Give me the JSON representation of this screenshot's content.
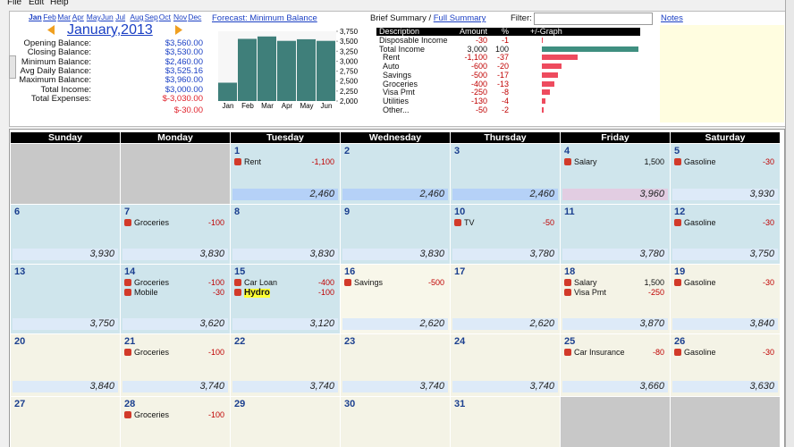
{
  "menu": [
    "File",
    "Edit",
    "Help"
  ],
  "months": [
    "Jan",
    "Feb",
    "Mar",
    "Apr",
    "May",
    "Jun",
    "Jul",
    "Aug",
    "Sep",
    "Oct",
    "Nov",
    "Dec"
  ],
  "title": "January,2013",
  "balances": [
    {
      "label": "Opening Balance:",
      "value": "$3,560.00"
    },
    {
      "label": "Closing Balance:",
      "value": "$3,530.00"
    },
    {
      "label": "Minimum Balance:",
      "value": "$2,460.00"
    },
    {
      "label": "Avg Daily Balance:",
      "value": "$3,525.16"
    },
    {
      "label": "Maximum Balance:",
      "value": "$3,960.00"
    },
    {
      "label": "Total Income:",
      "value": "$3,000.00"
    },
    {
      "label": "Total Expenses:",
      "value": "$-3,030.00"
    }
  ],
  "net": "$-30.00",
  "forecast": {
    "type": "bar",
    "title": "Forecast: Minimum Balance",
    "categories": [
      "Jan",
      "Feb",
      "Mar",
      "Apr",
      "May",
      "Jun"
    ],
    "values": [
      2460,
      3560,
      3620,
      3510,
      3550,
      3510
    ],
    "color": "#3f7f7a",
    "ylim": [
      2000,
      3750
    ],
    "yticks": [
      {
        "value": 3750,
        "label": "3,750"
      },
      {
        "value": 3500,
        "label": "3,500"
      },
      {
        "value": 3250,
        "label": "3,250"
      },
      {
        "value": 3000,
        "label": "3,000"
      },
      {
        "value": 2750,
        "label": "2,750"
      },
      {
        "value": 2500,
        "label": "2,500"
      },
      {
        "value": 2250,
        "label": "2,250"
      },
      {
        "value": 2000,
        "label": "2,000"
      }
    ]
  },
  "summary": {
    "brief": "Brief Summary",
    "separator": "/",
    "full": "Full Summary",
    "filter": "Filter:",
    "notes": "Notes",
    "columns": [
      "Description",
      "Amount",
      "%",
      "+/-Graph"
    ],
    "rows": [
      {
        "description": "Disposable Income",
        "amount": "-30",
        "percent": -1
      },
      {
        "description": "Total Income",
        "amount": "3,000",
        "percent": 100
      },
      {
        "description": "Rent",
        "amount": "-1,100",
        "percent": -37
      },
      {
        "description": "Auto",
        "amount": "-600",
        "percent": -20
      },
      {
        "description": "Savings",
        "amount": "-500",
        "percent": -17
      },
      {
        "description": "Groceries",
        "amount": "-400",
        "percent": -13
      },
      {
        "description": "Visa Pmt",
        "amount": "-250",
        "percent": -8
      },
      {
        "description": "Utilities",
        "amount": "-130",
        "percent": -4
      },
      {
        "description": "Other...",
        "amount": "-50",
        "percent": -2
      }
    ]
  },
  "calendar": {
    "days": [
      "Sunday",
      "Monday",
      "Tuesday",
      "Wednesday",
      "Thursday",
      "Friday",
      "Saturday"
    ],
    "weeks": [
      [
        {
          "color": "#c8c8c8"
        },
        {
          "color": "#c8c8c8"
        },
        {
          "day": 1,
          "color": "#cfe5ec",
          "entries": [
            {
              "label": "Rent",
              "amount": "-1,100"
            }
          ],
          "balance": "2,460",
          "bar_color": "#b5d1f7"
        },
        {
          "day": 2,
          "color": "#cfe5ec",
          "balance": "2,460",
          "bar_color": "#b5d1f7"
        },
        {
          "day": 3,
          "color": "#cfe5ec",
          "balance": "2,460",
          "bar_color": "#b5d1f7"
        },
        {
          "day": 4,
          "color": "#cfe5ec",
          "entries": [
            {
              "label": "Salary",
              "amount": "1,500"
            }
          ],
          "balance": "3,960",
          "bar_color": "#e2cde2"
        },
        {
          "day": 5,
          "color": "#cfe5ec",
          "entries": [
            {
              "label": "Gasoline",
              "amount": "-30"
            }
          ],
          "balance": "3,930",
          "bar_color": "#ddeaf8"
        }
      ],
      [
        {
          "day": 6,
          "color": "#cfe5ec",
          "balance": "3,930",
          "bar_color": "#ddeaf8"
        },
        {
          "day": 7,
          "color": "#cfe5ec",
          "entries": [
            {
              "label": "Groceries",
              "amount": "-100"
            }
          ],
          "balance": "3,830",
          "bar_color": "#ddeaf8"
        },
        {
          "day": 8,
          "color": "#cfe5ec",
          "balance": "3,830",
          "bar_color": "#ddeaf8"
        },
        {
          "day": 9,
          "color": "#cfe5ec",
          "balance": "3,830",
          "bar_color": "#ddeaf8"
        },
        {
          "day": 10,
          "color": "#cfe5ec",
          "entries": [
            {
              "label": "TV",
              "amount": "-50"
            }
          ],
          "balance": "3,780",
          "bar_color": "#ddeaf8"
        },
        {
          "day": 11,
          "color": "#cfe5ec",
          "balance": "3,780",
          "bar_color": "#ddeaf8"
        },
        {
          "day": 12,
          "color": "#cfe5ec",
          "entries": [
            {
              "label": "Gasoline",
              "amount": "-30"
            }
          ],
          "balance": "3,750",
          "bar_color": "#ddeaf8"
        }
      ],
      [
        {
          "day": 13,
          "color": "#cfe5ec",
          "balance": "3,750",
          "bar_color": "#ddeaf8"
        },
        {
          "day": 14,
          "color": "#cfe5ec",
          "entries": [
            {
              "label": "Groceries",
              "amount": "-100"
            },
            {
              "label": "Mobile",
              "amount": "-30"
            }
          ],
          "balance": "3,620",
          "bar_color": "#ddeaf8"
        },
        {
          "day": 15,
          "color": "#cfe5ec",
          "entries": [
            {
              "label": "Car Loan",
              "amount": "-400"
            },
            {
              "label": "Hydro",
              "amount": "-100",
              "highlight": "#ffff33"
            }
          ],
          "balance": "3,120",
          "bar_color": "#ddeaf8"
        },
        {
          "day": 16,
          "color": "#f8f7ea",
          "entries": [
            {
              "label": "Savings",
              "amount": "-500"
            }
          ],
          "balance": "2,620",
          "bar_color": "#ddeaf8"
        },
        {
          "day": 17,
          "color": "#f4f3e6",
          "balance": "2,620",
          "bar_color": "#ddeaf8"
        },
        {
          "day": 18,
          "color": "#f4f3e6",
          "entries": [
            {
              "label": "Salary",
              "amount": "1,500"
            },
            {
              "label": "Visa Pmt",
              "amount": "-250"
            }
          ],
          "balance": "3,870",
          "bar_color": "#ddeaf8"
        },
        {
          "day": 19,
          "color": "#f4f3e6",
          "entries": [
            {
              "label": "Gasoline",
              "amount": "-30"
            }
          ],
          "balance": "3,840",
          "bar_color": "#ddeaf8"
        }
      ],
      [
        {
          "day": 20,
          "color": "#f4f3e6",
          "balance": "3,840",
          "bar_color": "#ddeaf8"
        },
        {
          "day": 21,
          "color": "#f4f3e6",
          "entries": [
            {
              "label": "Groceries",
              "amount": "-100"
            }
          ],
          "balance": "3,740",
          "bar_color": "#ddeaf8"
        },
        {
          "day": 22,
          "color": "#f4f3e6",
          "balance": "3,740",
          "bar_color": "#ddeaf8"
        },
        {
          "day": 23,
          "color": "#f4f3e6",
          "balance": "3,740",
          "bar_color": "#ddeaf8"
        },
        {
          "day": 24,
          "color": "#f4f3e6",
          "balance": "3,740",
          "bar_color": "#ddeaf8"
        },
        {
          "day": 25,
          "color": "#f4f3e6",
          "entries": [
            {
              "label": "Car Insurance",
              "amount": "-80"
            }
          ],
          "balance": "3,660",
          "bar_color": "#ddeaf8"
        },
        {
          "day": 26,
          "color": "#f4f3e6",
          "entries": [
            {
              "label": "Gasoline",
              "amount": "-30"
            }
          ],
          "balance": "3,630",
          "bar_color": "#ddeaf8"
        }
      ],
      [
        {
          "day": 27,
          "color": "#f4f3e6"
        },
        {
          "day": 28,
          "color": "#f4f3e6",
          "entries": [
            {
              "label": "Groceries",
              "amount": "-100"
            }
          ]
        },
        {
          "day": 29,
          "color": "#f4f3e6"
        },
        {
          "day": 30,
          "color": "#f4f3e6"
        },
        {
          "day": 31,
          "color": "#f4f3e6"
        },
        {
          "color": "#c8c8c8"
        },
        {
          "color": "#c8c8c8"
        }
      ]
    ]
  }
}
